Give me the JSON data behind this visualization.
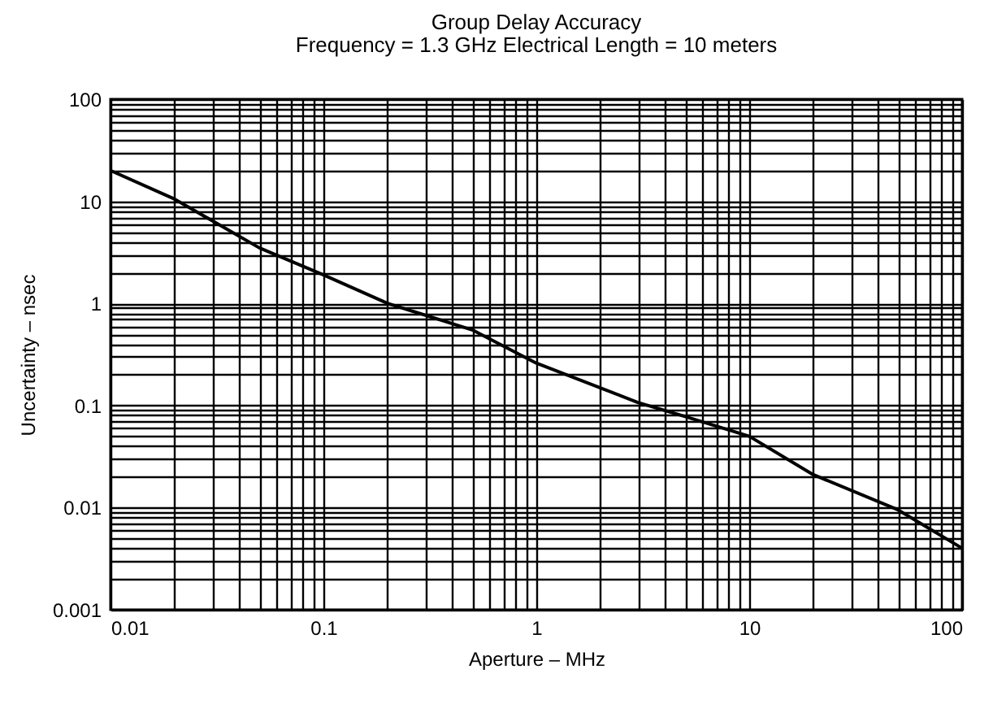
{
  "chart_data": {
    "type": "line",
    "title": "Group Delay Accuracy",
    "subtitle": "Frequency = 1.3 GHz   Electrical Length = 10 meters",
    "xlabel": "Aperture – MHz",
    "ylabel": "Uncertainty – nsec",
    "x": [
      0.01,
      0.02,
      0.05,
      0.1,
      0.2,
      0.5,
      1,
      3,
      5,
      10,
      20,
      50,
      100
    ],
    "series": [
      {
        "color": "#000000",
        "values": [
          20,
          10.5,
          3.5,
          1.9,
          1.0,
          0.55,
          0.26,
          0.107,
          0.078,
          0.05,
          0.021,
          0.0095,
          0.004
        ]
      }
    ],
    "log": "xy",
    "grid": true,
    "xlim": [
      0.01,
      100
    ],
    "xticks": [
      0.01,
      0.1,
      1,
      10,
      100
    ],
    "ylim": [
      0.001,
      100
    ],
    "yticks": [
      0.001,
      0.01,
      0.1,
      1,
      10,
      100
    ]
  }
}
